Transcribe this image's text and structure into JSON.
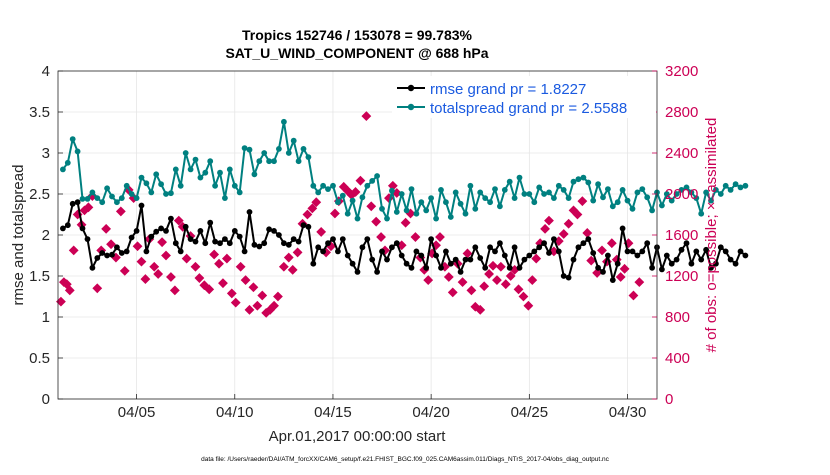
{
  "chart_data": {
    "type": "line",
    "title_line1": "Tropics 152746 / 153078 = 99.783%",
    "title_line2": "SAT_U_WIND_COMPONENT @ 688 hPa",
    "xlabel": "Apr.01,2017 00:00:00 start",
    "ylabel_left": "rmse and totalspread",
    "ylabel_right": "# of obs: o=possible; ×=assimilated",
    "xlim": [
      1,
      31.5
    ],
    "ylim_left": [
      0,
      4
    ],
    "ylim_right": [
      0,
      3200
    ],
    "grid": true,
    "legend_position": "top-right",
    "x_ticks": [
      5,
      10,
      15,
      20,
      25,
      30
    ],
    "x_tick_labels": [
      "04/05",
      "04/10",
      "04/15",
      "04/20",
      "04/25",
      "04/30"
    ],
    "y_left_ticks": [
      0,
      0.5,
      1,
      1.5,
      2,
      2.5,
      3,
      3.5,
      4
    ],
    "y_left_tick_labels": [
      "0",
      "0.5",
      "1",
      "1.5",
      "2",
      "2.5",
      "3",
      "3.5",
      "4"
    ],
    "y_right_ticks": [
      0,
      400,
      800,
      1200,
      1600,
      2000,
      2400,
      2800,
      3200
    ],
    "y_right_tick_labels": [
      "0",
      "400",
      "800",
      "1200",
      "1600",
      "2000",
      "2400",
      "2800",
      "3200"
    ],
    "x_start": 1.25,
    "x_step": 0.25,
    "series": [
      {
        "name": "rmse grand pr = 1.8227",
        "axis": "left",
        "color": "#000000",
        "values": [
          2.08,
          2.12,
          2.38,
          2.4,
          2.08,
          1.95,
          1.6,
          1.72,
          1.78,
          1.75,
          1.76,
          1.85,
          1.78,
          1.8,
          1.97,
          2.05,
          2.36,
          1.8,
          1.98,
          2.04,
          2.08,
          2.05,
          2.2,
          1.9,
          1.8,
          2.1,
          1.95,
          1.92,
          2.05,
          1.9,
          2.15,
          1.92,
          1.9,
          1.95,
          1.9,
          2.05,
          1.98,
          1.8,
          2.28,
          1.88,
          1.86,
          1.9,
          2.07,
          2.05,
          2.0,
          1.9,
          1.88,
          1.95,
          1.92,
          2.12,
          2.1,
          1.65,
          1.85,
          1.8,
          1.9,
          1.95,
          1.8,
          1.95,
          1.75,
          1.65,
          1.55,
          1.85,
          1.95,
          1.7,
          1.55,
          1.8,
          1.7,
          1.85,
          1.9,
          1.75,
          1.65,
          1.6,
          1.8,
          1.75,
          1.6,
          1.95,
          1.75,
          1.6,
          1.8,
          1.65,
          1.7,
          1.55,
          1.7,
          1.7,
          1.85,
          1.72,
          1.6,
          1.85,
          1.8,
          1.9,
          1.75,
          1.6,
          1.85,
          1.6,
          1.7,
          1.75,
          1.8,
          1.85,
          1.9,
          1.78,
          1.95,
          1.8,
          1.5,
          1.48,
          1.7,
          1.85,
          1.9,
          1.95,
          1.78,
          1.6,
          1.55,
          1.75,
          1.45,
          1.65,
          2.08,
          1.8,
          1.8,
          1.75,
          1.8,
          1.9,
          1.6,
          1.85,
          1.58,
          1.75,
          1.65,
          1.7,
          1.82,
          1.9,
          1.65,
          1.8,
          1.7,
          1.82,
          1.6,
          1.65,
          1.85,
          1.8,
          1.7,
          1.65,
          1.8,
          1.75
        ]
      },
      {
        "name": "totalspread grand pr = 2.5588",
        "axis": "left",
        "color": "#008080",
        "values": [
          2.8,
          2.88,
          3.17,
          3.02,
          2.44,
          2.44,
          2.52,
          2.45,
          2.4,
          2.57,
          2.47,
          2.4,
          2.45,
          2.6,
          2.5,
          2.45,
          2.7,
          2.63,
          2.52,
          2.74,
          2.62,
          2.5,
          2.51,
          2.8,
          2.6,
          3.0,
          2.8,
          2.92,
          2.7,
          2.76,
          2.9,
          2.6,
          2.76,
          2.45,
          2.8,
          2.6,
          2.52,
          3.06,
          3.04,
          2.74,
          2.9,
          3.0,
          2.9,
          2.9,
          3.05,
          3.38,
          3.0,
          3.15,
          2.9,
          3.05,
          2.95,
          2.6,
          2.52,
          2.6,
          2.56,
          2.6,
          2.4,
          2.48,
          2.26,
          2.42,
          2.2,
          2.46,
          2.6,
          2.66,
          2.72,
          2.32,
          2.2,
          2.54,
          2.28,
          2.5,
          2.3,
          2.56,
          2.26,
          2.4,
          2.3,
          2.45,
          2.2,
          2.55,
          2.4,
          2.22,
          2.52,
          2.38,
          2.26,
          2.6,
          2.32,
          2.52,
          2.45,
          2.4,
          2.56,
          2.35,
          2.55,
          2.65,
          2.45,
          2.7,
          2.5,
          2.5,
          2.4,
          2.58,
          2.5,
          2.52,
          2.45,
          2.6,
          2.55,
          2.45,
          2.65,
          2.68,
          2.7,
          2.64,
          2.42,
          2.62,
          2.46,
          2.56,
          2.35,
          2.4,
          2.55,
          2.42,
          2.32,
          2.52,
          2.56,
          2.46,
          2.3,
          2.52,
          2.36,
          2.5,
          2.42,
          2.5,
          2.55,
          2.58,
          2.52,
          2.45,
          2.26,
          2.52,
          2.42,
          2.55,
          2.5,
          2.6,
          2.55,
          2.62,
          2.58,
          2.6
        ]
      },
      {
        "name": "obs assimilated",
        "axis": "right",
        "color": "#cc0055",
        "marker_only": true,
        "points": [
          [
            1.15,
            950
          ],
          [
            1.3,
            1140
          ],
          [
            1.45,
            1120
          ],
          [
            1.6,
            1060
          ],
          [
            1.8,
            1450
          ],
          [
            2.0,
            1800
          ],
          [
            2.2,
            1700
          ],
          [
            2.35,
            1840
          ],
          [
            2.55,
            1870
          ],
          [
            2.75,
            1980
          ],
          [
            3.0,
            1080
          ],
          [
            3.2,
            1450
          ],
          [
            3.45,
            1660
          ],
          [
            3.7,
            1510
          ],
          [
            3.95,
            1380
          ],
          [
            4.2,
            1830
          ],
          [
            4.4,
            1250
          ],
          [
            4.6,
            2040
          ],
          [
            4.85,
            1960
          ],
          [
            5.05,
            1490
          ],
          [
            5.25,
            1340
          ],
          [
            5.45,
            1170
          ],
          [
            5.65,
            1560
          ],
          [
            5.9,
            1290
          ],
          [
            6.1,
            1220
          ],
          [
            6.3,
            1530
          ],
          [
            6.5,
            1400
          ],
          [
            6.75,
            1190
          ],
          [
            6.95,
            1060
          ],
          [
            7.15,
            1740
          ],
          [
            7.35,
            1680
          ],
          [
            7.55,
            1370
          ],
          [
            7.75,
            1590
          ],
          [
            8.0,
            1290
          ],
          [
            8.2,
            1180
          ],
          [
            8.45,
            1110
          ],
          [
            8.7,
            1070
          ],
          [
            8.95,
            1410
          ],
          [
            9.2,
            1320
          ],
          [
            9.4,
            1130
          ],
          [
            9.6,
            1370
          ],
          [
            9.85,
            1030
          ],
          [
            10.05,
            940
          ],
          [
            10.3,
            1290
          ],
          [
            10.55,
            1160
          ],
          [
            10.75,
            870
          ],
          [
            10.95,
            1090
          ],
          [
            11.15,
            910
          ],
          [
            11.4,
            1010
          ],
          [
            11.6,
            840
          ],
          [
            11.8,
            870
          ],
          [
            12.0,
            910
          ],
          [
            12.2,
            1000
          ],
          [
            12.5,
            1290
          ],
          [
            12.75,
            1380
          ],
          [
            12.95,
            1260
          ],
          [
            13.2,
            1430
          ],
          [
            13.45,
            1710
          ],
          [
            13.7,
            1800
          ],
          [
            13.95,
            1860
          ],
          [
            14.15,
            1920
          ],
          [
            14.4,
            1630
          ],
          [
            14.65,
            1430
          ],
          [
            14.9,
            1490
          ],
          [
            15.1,
            1810
          ],
          [
            15.3,
            1930
          ],
          [
            15.55,
            2070
          ],
          [
            15.75,
            2030
          ],
          [
            15.95,
            1990
          ],
          [
            16.15,
            2020
          ],
          [
            16.4,
            2130
          ],
          [
            16.7,
            2760
          ],
          [
            16.95,
            1880
          ],
          [
            17.2,
            1730
          ],
          [
            17.45,
            1580
          ],
          [
            17.65,
            1450
          ],
          [
            17.85,
            1960
          ],
          [
            18.05,
            2080
          ],
          [
            18.25,
            2010
          ],
          [
            18.5,
            1500
          ],
          [
            18.7,
            1720
          ],
          [
            18.95,
            1810
          ],
          [
            19.2,
            1580
          ],
          [
            19.45,
            1380
          ],
          [
            19.65,
            1260
          ],
          [
            19.85,
            1160
          ],
          [
            20.05,
            1420
          ],
          [
            20.25,
            1500
          ],
          [
            20.45,
            1580
          ],
          [
            20.7,
            1290
          ],
          [
            20.9,
            1190
          ],
          [
            21.1,
            1040
          ],
          [
            21.35,
            1320
          ],
          [
            21.6,
            1140
          ],
          [
            21.85,
            1420
          ],
          [
            22.05,
            1060
          ],
          [
            22.25,
            900
          ],
          [
            22.5,
            870
          ],
          [
            22.7,
            1100
          ],
          [
            22.95,
            1220
          ],
          [
            23.15,
            1300
          ],
          [
            23.35,
            1160
          ],
          [
            23.55,
            1290
          ],
          [
            23.8,
            1120
          ],
          [
            24.05,
            1200
          ],
          [
            24.25,
            1260
          ],
          [
            24.45,
            1070
          ],
          [
            24.7,
            1000
          ],
          [
            24.95,
            910
          ],
          [
            25.15,
            1160
          ],
          [
            25.35,
            1370
          ],
          [
            25.55,
            1520
          ],
          [
            25.8,
            1660
          ],
          [
            26.0,
            1740
          ],
          [
            26.25,
            1440
          ],
          [
            26.5,
            1540
          ],
          [
            26.75,
            1610
          ],
          [
            27.0,
            1710
          ],
          [
            27.25,
            1840
          ],
          [
            27.45,
            1800
          ],
          [
            27.7,
            1930
          ],
          [
            27.95,
            1620
          ],
          [
            28.15,
            1350
          ],
          [
            28.45,
            1230
          ],
          [
            28.7,
            1450
          ],
          [
            28.95,
            1340
          ],
          [
            29.2,
            1520
          ],
          [
            29.45,
            1360
          ],
          [
            29.65,
            1190
          ],
          [
            29.85,
            1270
          ],
          [
            30.05,
            1520
          ],
          [
            30.3,
            1010
          ],
          [
            30.6,
            1140
          ]
        ]
      }
    ]
  },
  "footer": {
    "data_file": "data file: /Users/raeder/DAI/ATM_forcXX/CAM6_setup/f.e21.FHIST_BGC.f09_025.CAM6assim.011/Diags_NTrS_2017-04/obs_diag_output.nc"
  }
}
